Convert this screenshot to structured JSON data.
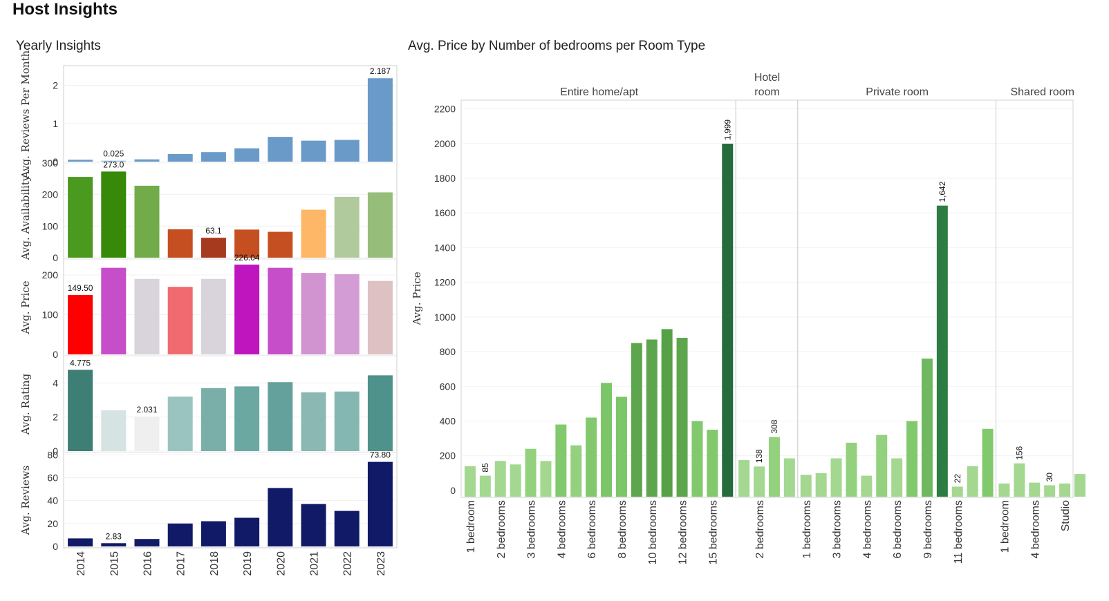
{
  "title": "Host Insights",
  "yearly": {
    "title": "Yearly Insights",
    "years": [
      "2014",
      "2015",
      "2016",
      "2017",
      "2018",
      "2019",
      "2020",
      "2021",
      "2022",
      "2023"
    ],
    "panels": [
      {
        "ylabel": "Avg. Reviews Per Month",
        "ylim": [
          0,
          2.3
        ],
        "ticks": [
          0,
          1,
          2
        ],
        "values": [
          0.05,
          0.025,
          0.06,
          0.2,
          0.25,
          0.35,
          0.65,
          0.55,
          0.57,
          2.187
        ],
        "colors": [
          "#6a9bc8",
          "#9dc0e0",
          "#6a9bc8",
          "#6a9bc8",
          "#6a9bc8",
          "#6a9bc8",
          "#6a9bc8",
          "#6a9bc8",
          "#6a9bc8",
          "#6a9bc8"
        ],
        "labels": [
          null,
          "0.025",
          null,
          null,
          null,
          null,
          null,
          null,
          null,
          "2.187"
        ]
      },
      {
        "ylabel": "Avg. Availability ...",
        "ylim": [
          0,
          300
        ],
        "ticks": [
          0,
          100,
          200,
          300
        ],
        "values": [
          256,
          273.0,
          228,
          90,
          63.1,
          89,
          82,
          152,
          193,
          207
        ],
        "colors": [
          "#4a9a1f",
          "#368a08",
          "#72ab4a",
          "#c64f22",
          "#a53a1e",
          "#c64f22",
          "#c64f22",
          "#fdb766",
          "#b0c99d",
          "#97bd7a"
        ],
        "labels": [
          null,
          "273.0",
          null,
          null,
          "63.1",
          null,
          null,
          null,
          null,
          null
        ]
      },
      {
        "ylabel": "Avg. Price",
        "ylim": [
          0,
          240
        ],
        "ticks": [
          0,
          100,
          200
        ],
        "values": [
          149.5,
          218,
          190,
          170,
          190,
          226.04,
          218,
          205,
          202,
          185
        ],
        "colors": [
          "#ff0000",
          "#c64fc9",
          "#d9d3dc",
          "#ef6b6f",
          "#d9d3dc",
          "#be15be",
          "#c64fc9",
          "#d293d1",
          "#d39cd5",
          "#ddc1c3"
        ],
        "labels": [
          "149.50",
          null,
          null,
          null,
          null,
          "226.04",
          null,
          null,
          null,
          null
        ]
      },
      {
        "ylabel": "Avg. Rating",
        "ylim": [
          0,
          5.6
        ],
        "ticks": [
          0,
          2,
          4
        ],
        "values": [
          4.775,
          2.4,
          2.031,
          3.2,
          3.7,
          3.8,
          4.05,
          3.45,
          3.5,
          4.45
        ],
        "colors": [
          "#3d7e75",
          "#d5e3e2",
          "#efefef",
          "#9ac4c0",
          "#7aaea8",
          "#6ba8a2",
          "#64a19c",
          "#8cb8b4",
          "#85b7b2",
          "#4f918b"
        ],
        "labels": [
          "4.775",
          null,
          "2.031",
          null,
          null,
          null,
          null,
          null,
          null,
          null
        ]
      },
      {
        "ylabel": "Avg. Reviews",
        "ylim": [
          0,
          82
        ],
        "ticks": [
          0,
          20,
          40,
          60,
          80
        ],
        "values": [
          7,
          2.83,
          6.5,
          20,
          22,
          25,
          51,
          37,
          31,
          73.8
        ],
        "colors": [
          "#111a66",
          "#111a66",
          "#111a66",
          "#111a66",
          "#111a66",
          "#111a66",
          "#111a66",
          "#111a66",
          "#111a66",
          "#111a66"
        ],
        "labels": [
          null,
          "2.83",
          null,
          null,
          null,
          null,
          null,
          null,
          null,
          "73.80"
        ]
      }
    ]
  },
  "price": {
    "title": "Avg. Price by Number of bedrooms per Room Type",
    "ylabel": "Avg. Price",
    "ylim": [
      -40,
      2250
    ],
    "ticks": [
      0,
      200,
      400,
      600,
      800,
      1000,
      1200,
      1400,
      1600,
      1800,
      2000,
      2200
    ],
    "groups": [
      {
        "header": "Entire home/apt",
        "header_lines": [
          "Entire home/apt"
        ],
        "bars": [
          {
            "label": "1 bedroom",
            "value": 140,
            "color": "#a4d890"
          },
          {
            "label": "",
            "value": 85,
            "color": "#a4d890",
            "dlabel": "85"
          },
          {
            "label": "2 bedrooms",
            "value": 170,
            "color": "#a4d890"
          },
          {
            "label": "",
            "value": 150,
            "color": "#a4d890"
          },
          {
            "label": "3 bedrooms",
            "value": 240,
            "color": "#93d17e"
          },
          {
            "label": "",
            "value": 170,
            "color": "#a4d890"
          },
          {
            "label": "4 bedrooms",
            "value": 380,
            "color": "#82c96e"
          },
          {
            "label": "",
            "value": 260,
            "color": "#93d17e"
          },
          {
            "label": "6 bedrooms",
            "value": 420,
            "color": "#82c96e"
          },
          {
            "label": "",
            "value": 620,
            "color": "#7cc568"
          },
          {
            "label": "8 bedrooms",
            "value": 540,
            "color": "#7cc568"
          },
          {
            "label": "",
            "value": 850,
            "color": "#5ea64d"
          },
          {
            "label": "10 bedrooms",
            "value": 870,
            "color": "#5ea64d"
          },
          {
            "label": "",
            "value": 930,
            "color": "#56a045"
          },
          {
            "label": "12 bedrooms",
            "value": 880,
            "color": "#5ea64d"
          },
          {
            "label": "",
            "value": 400,
            "color": "#82c96e"
          },
          {
            "label": "15 bedrooms",
            "value": 350,
            "color": "#82c96e"
          },
          {
            "label": "",
            "value": 1999,
            "color": "#266b3d",
            "dlabel": "1,999"
          }
        ]
      },
      {
        "header": "Hotel room",
        "header_lines": [
          "Hotel",
          "room"
        ],
        "bars": [
          {
            "label": "",
            "value": 175,
            "color": "#a4d890"
          },
          {
            "label": "2 bedrooms",
            "value": 138,
            "color": "#a4d890",
            "dlabel": "138"
          },
          {
            "label": "",
            "value": 308,
            "color": "#93d17e",
            "dlabel": "308"
          },
          {
            "label": "",
            "value": 185,
            "color": "#a4d890"
          }
        ]
      },
      {
        "header": "Private room",
        "header_lines": [
          "Private room"
        ],
        "bars": [
          {
            "label": "1 bedrooms",
            "value": 90,
            "color": "#a4d890"
          },
          {
            "label": "",
            "value": 100,
            "color": "#a4d890"
          },
          {
            "label": "3 bedrooms",
            "value": 185,
            "color": "#a4d890"
          },
          {
            "label": "",
            "value": 275,
            "color": "#93d17e"
          },
          {
            "label": "4 bedrooms",
            "value": 85,
            "color": "#a4d890"
          },
          {
            "label": "",
            "value": 320,
            "color": "#93d17e"
          },
          {
            "label": "6 bedrooms",
            "value": 185,
            "color": "#a4d890"
          },
          {
            "label": "",
            "value": 400,
            "color": "#82c96e"
          },
          {
            "label": "9 bedrooms",
            "value": 760,
            "color": "#6fb85f"
          },
          {
            "label": "",
            "value": 1642,
            "color": "#2d7d42",
            "dlabel": "1,642"
          },
          {
            "label": "11 bedrooms",
            "value": 22,
            "color": "#a4d890",
            "dlabel": "22"
          },
          {
            "label": "",
            "value": 140,
            "color": "#a4d890"
          },
          {
            "label": "",
            "value": 355,
            "color": "#82c96e"
          }
        ]
      },
      {
        "header": "Shared room",
        "header_lines": [
          "Shared room"
        ],
        "bars": [
          {
            "label": "1 bedroom",
            "value": 40,
            "color": "#a4d890"
          },
          {
            "label": "",
            "value": 156,
            "color": "#a4d890",
            "dlabel": "156"
          },
          {
            "label": "4 bedrooms",
            "value": 45,
            "color": "#a4d890"
          },
          {
            "label": "",
            "value": 30,
            "color": "#a4d890",
            "dlabel": "30"
          },
          {
            "label": "Studio",
            "value": 40,
            "color": "#a4d890"
          },
          {
            "label": "",
            "value": 95,
            "color": "#a4d890"
          }
        ]
      }
    ]
  },
  "chart_data": [
    {
      "type": "bar",
      "title": "Yearly Insights",
      "categories": [
        "2014",
        "2015",
        "2016",
        "2017",
        "2018",
        "2019",
        "2020",
        "2021",
        "2022",
        "2023"
      ],
      "series": [
        {
          "name": "Avg. Reviews Per Month",
          "values": [
            0.05,
            0.025,
            0.06,
            0.2,
            0.25,
            0.35,
            0.65,
            0.55,
            0.57,
            2.187
          ]
        },
        {
          "name": "Avg. Availability ...",
          "values": [
            256,
            273.0,
            228,
            90,
            63.1,
            89,
            82,
            152,
            193,
            207
          ]
        },
        {
          "name": "Avg. Price",
          "values": [
            149.5,
            218,
            190,
            170,
            190,
            226.04,
            218,
            205,
            202,
            185
          ]
        },
        {
          "name": "Avg. Rating",
          "values": [
            4.775,
            2.4,
            2.031,
            3.2,
            3.7,
            3.8,
            4.05,
            3.45,
            3.5,
            4.45
          ]
        },
        {
          "name": "Avg. Reviews",
          "values": [
            7,
            2.83,
            6.5,
            20,
            22,
            25,
            51,
            37,
            31,
            73.8
          ]
        }
      ]
    },
    {
      "type": "bar",
      "title": "Avg. Price by Number of bedrooms per Room Type",
      "ylabel": "Avg. Price",
      "ylim": [
        0,
        2200
      ],
      "groups": [
        "Entire home/apt",
        "Hotel room",
        "Private room",
        "Shared room"
      ]
    }
  ]
}
